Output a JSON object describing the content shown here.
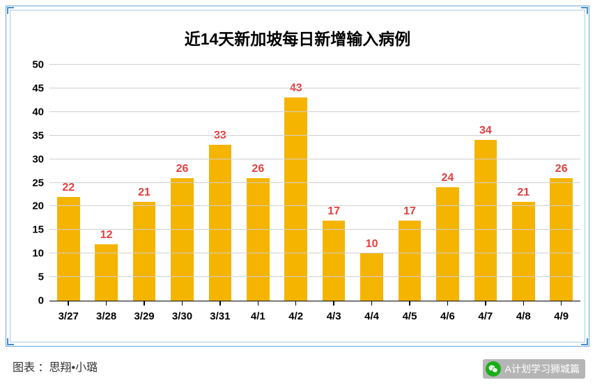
{
  "chart": {
    "type": "bar",
    "title": "近14天新加坡每日新增输入病例",
    "title_fontsize": 23,
    "title_fontweight": 900,
    "title_color": "#000000",
    "categories": [
      "3/27",
      "3/28",
      "3/29",
      "3/30",
      "3/31",
      "4/1",
      "4/2",
      "4/3",
      "4/4",
      "4/5",
      "4/6",
      "4/7",
      "4/8",
      "4/9"
    ],
    "values": [
      22,
      12,
      21,
      26,
      33,
      26,
      43,
      17,
      10,
      17,
      24,
      34,
      21,
      26
    ],
    "bar_color": "#f5b400",
    "value_label_color": "#e53e3e",
    "value_label_fontsize": 16,
    "x_tick_fontsize": 15,
    "y_tick_fontsize": 15,
    "ylim": [
      0,
      50
    ],
    "ytick_step": 5,
    "grid_color": "#d0d0d0",
    "axis_color": "#000000",
    "background_color": "#ffffff",
    "bar_width_ratio": 0.6,
    "frame_border_color_outer": "#6ba8d8",
    "frame_border_color_inner": "#a8cce8",
    "corner_bracket_color": "#4a8cc4"
  },
  "footer": {
    "credit": "图表 ：思翔•小璐",
    "watermark_text": "A计划学习狮城篇",
    "watermark_icon": "wechat-icon",
    "watermark_bg": "rgba(120,120,120,0.55)",
    "watermark_text_color": "#ffffff",
    "watermark_icon_bg": "#1aad19"
  }
}
